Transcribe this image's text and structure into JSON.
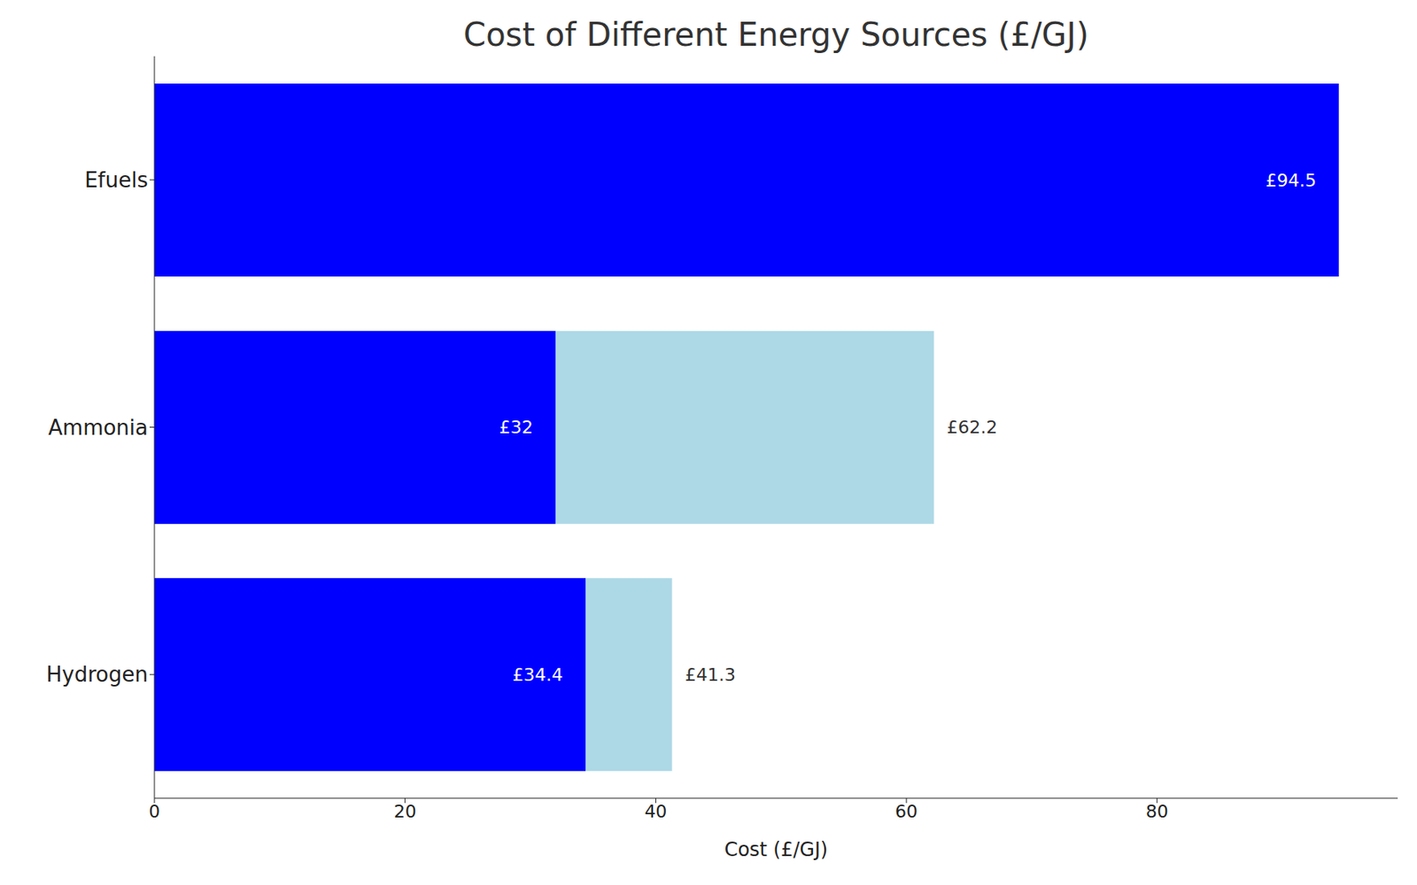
{
  "chart_data": {
    "type": "bar",
    "title": "Cost of Different Energy Sources (£/GJ)",
    "x_label": "Cost (£/GJ)",
    "orientation": "horizontal",
    "stacked": false,
    "grid": false,
    "data_labels": true,
    "categories": [
      "Efuels",
      "Ammonia",
      "Hydrogen"
    ],
    "series": [
      {
        "color": "#add8e6",
        "values": [
          null,
          62.2,
          41.3
        ],
        "value_labels": [
          null,
          "£62.2",
          "£41.3"
        ]
      },
      {
        "color": "#0000ff",
        "values": [
          94.5,
          32,
          34.4
        ],
        "value_labels": [
          "£94.5",
          "£32",
          "£34.4"
        ]
      }
    ],
    "xlim": [
      0,
      99.2
    ],
    "xticks": [
      0,
      20,
      40,
      60,
      80
    ]
  }
}
